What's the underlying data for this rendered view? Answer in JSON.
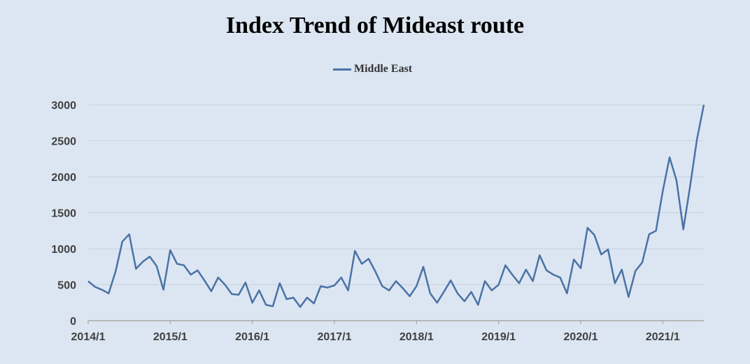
{
  "chart_data": {
    "type": "line",
    "title": "Index Trend of Mideast route",
    "xlabel": "",
    "ylabel": "",
    "ylim": [
      0,
      3000
    ],
    "y_ticks": [
      0,
      500,
      1000,
      1500,
      2000,
      2500,
      3000
    ],
    "x_range": [
      "2014/1",
      "2021/7"
    ],
    "x_tick_labels": [
      "2014/1",
      "2015/1",
      "2016/1",
      "2017/1",
      "2018/1",
      "2019/1",
      "2020/1",
      "2021/1"
    ],
    "legend_position": "top-center",
    "grid": true,
    "series": [
      {
        "name": "Middle East",
        "color": "#4a72a6",
        "points": [
          [
            "2014/1",
            550
          ],
          [
            "2014/2",
            470
          ],
          [
            "2014/3",
            430
          ],
          [
            "2014/4",
            380
          ],
          [
            "2014/5",
            680
          ],
          [
            "2014/6",
            1100
          ],
          [
            "2014/7",
            1200
          ],
          [
            "2014/8",
            720
          ],
          [
            "2014/9",
            820
          ],
          [
            "2014/10",
            890
          ],
          [
            "2014/11",
            760
          ],
          [
            "2014/12",
            430
          ],
          [
            "2015/1",
            980
          ],
          [
            "2015/2",
            790
          ],
          [
            "2015/3",
            770
          ],
          [
            "2015/4",
            640
          ],
          [
            "2015/5",
            700
          ],
          [
            "2015/6",
            560
          ],
          [
            "2015/7",
            410
          ],
          [
            "2015/8",
            600
          ],
          [
            "2015/9",
            500
          ],
          [
            "2015/10",
            370
          ],
          [
            "2015/11",
            360
          ],
          [
            "2015/12",
            530
          ],
          [
            "2016/1",
            250
          ],
          [
            "2016/2",
            420
          ],
          [
            "2016/3",
            220
          ],
          [
            "2016/4",
            200
          ],
          [
            "2016/5",
            520
          ],
          [
            "2016/6",
            300
          ],
          [
            "2016/7",
            320
          ],
          [
            "2016/8",
            190
          ],
          [
            "2016/9",
            320
          ],
          [
            "2016/10",
            240
          ],
          [
            "2016/11",
            480
          ],
          [
            "2016/12",
            460
          ],
          [
            "2017/1",
            490
          ],
          [
            "2017/2",
            600
          ],
          [
            "2017/3",
            420
          ],
          [
            "2017/4",
            970
          ],
          [
            "2017/5",
            790
          ],
          [
            "2017/6",
            860
          ],
          [
            "2017/7",
            680
          ],
          [
            "2017/8",
            480
          ],
          [
            "2017/9",
            420
          ],
          [
            "2017/10",
            550
          ],
          [
            "2017/11",
            450
          ],
          [
            "2017/12",
            340
          ],
          [
            "2018/1",
            480
          ],
          [
            "2018/2",
            750
          ],
          [
            "2018/3",
            380
          ],
          [
            "2018/4",
            250
          ],
          [
            "2018/5",
            400
          ],
          [
            "2018/6",
            560
          ],
          [
            "2018/7",
            380
          ],
          [
            "2018/8",
            270
          ],
          [
            "2018/9",
            400
          ],
          [
            "2018/10",
            220
          ],
          [
            "2018/11",
            550
          ],
          [
            "2018/12",
            420
          ],
          [
            "2019/1",
            500
          ],
          [
            "2019/2",
            770
          ],
          [
            "2019/3",
            640
          ],
          [
            "2019/4",
            520
          ],
          [
            "2019/5",
            710
          ],
          [
            "2019/6",
            550
          ],
          [
            "2019/7",
            910
          ],
          [
            "2019/8",
            700
          ],
          [
            "2019/9",
            640
          ],
          [
            "2019/10",
            600
          ],
          [
            "2019/11",
            380
          ],
          [
            "2019/12",
            850
          ],
          [
            "2020/1",
            730
          ],
          [
            "2020/2",
            1290
          ],
          [
            "2020/3",
            1190
          ],
          [
            "2020/4",
            920
          ],
          [
            "2020/5",
            990
          ],
          [
            "2020/6",
            520
          ],
          [
            "2020/7",
            710
          ],
          [
            "2020/8",
            330
          ],
          [
            "2020/9",
            690
          ],
          [
            "2020/10",
            810
          ],
          [
            "2020/11",
            1200
          ],
          [
            "2020/12",
            1250
          ],
          [
            "2021/1",
            1800
          ],
          [
            "2021/2",
            2270
          ],
          [
            "2021/3",
            1950
          ],
          [
            "2021/4",
            1270
          ],
          [
            "2021/5",
            1870
          ],
          [
            "2021/6",
            2520
          ],
          [
            "2021/7",
            3000
          ]
        ]
      }
    ]
  }
}
